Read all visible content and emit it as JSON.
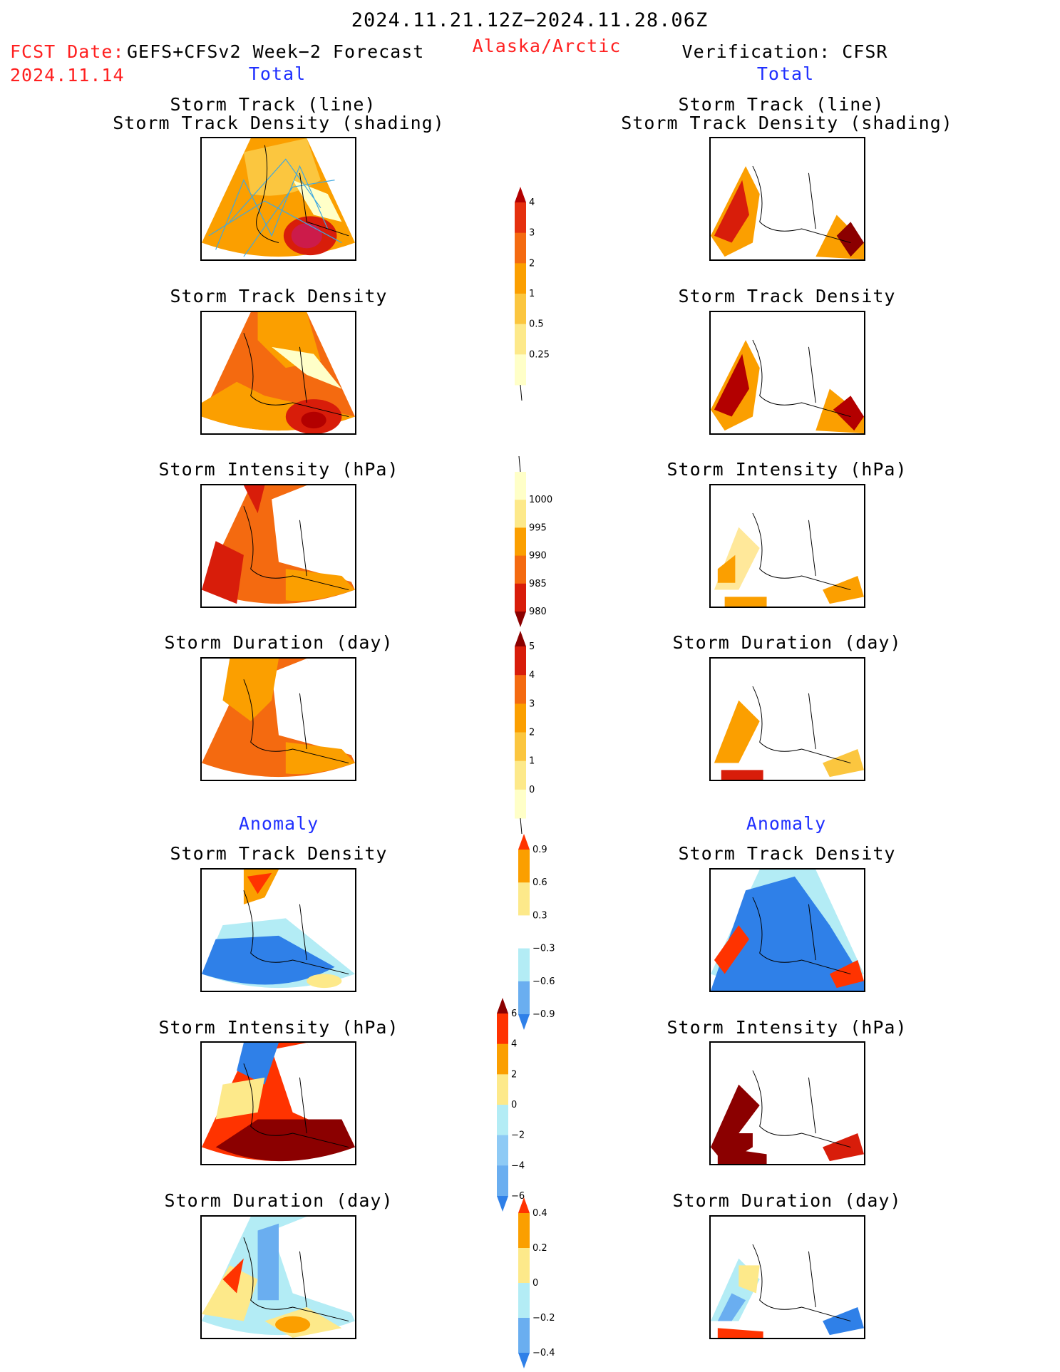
{
  "header": {
    "period": "2024.11.21.12Z−2024.11.28.06Z",
    "fcst_date_label": "FCST Date:",
    "fcst_model": "GEFS+CFSv2 Week−2 Forecast",
    "fcst_date": "2024.11.14",
    "region": "Alaska/Arctic",
    "verification": "Verification: CFSR"
  },
  "columns": {
    "left_total": "Total",
    "right_total": "Total",
    "left_anomaly": "Anomaly",
    "right_anomaly": "Anomaly"
  },
  "panels": {
    "track_title_1": "Storm Track (line)",
    "track_title_2": "Storm Track Density (shading)",
    "density": "Storm Track Density",
    "intensity": "Storm Intensity (hPa)",
    "duration": "Storm Duration (day)"
  },
  "colorbars": {
    "density_total": {
      "labels": [
        "4",
        "3",
        "2",
        "1",
        "0.5",
        "0.25"
      ],
      "colors": [
        "#b30000",
        "#e5300e",
        "#f46a10",
        "#fb9f00",
        "#fbc63f",
        "#fde98a",
        "#ffffc8"
      ]
    },
    "intensity_total": {
      "labels": [
        "1000",
        "995",
        "990",
        "985",
        "980"
      ],
      "colors": [
        "#ffffc8",
        "#fde98a",
        "#fb9f00",
        "#f46a10",
        "#d81d0a",
        "#8b0000"
      ]
    },
    "duration_total": {
      "labels": [
        "5",
        "4",
        "3",
        "2",
        "1",
        "0"
      ],
      "colors": [
        "#8b0000",
        "#d81d0a",
        "#f46a10",
        "#fb9f00",
        "#fbc63f",
        "#fde98a",
        "#ffffc8"
      ]
    },
    "density_anom": {
      "labels": [
        "0.9",
        "0.6",
        "0.3",
        "−0.3",
        "−0.6",
        "−0.9"
      ],
      "colors": [
        "#ff3300",
        "#fb9f00",
        "#fde98a",
        "#ffffff",
        "#b3ecf5",
        "#6aaef0",
        "#2f80e8"
      ]
    },
    "intensity_anom": {
      "labels": [
        "6",
        "4",
        "2",
        "0",
        "−2",
        "−4",
        "−6"
      ],
      "colors": [
        "#8b0000",
        "#ff3300",
        "#fb9f00",
        "#fde98a",
        "#b3ecf5",
        "#8ecaf5",
        "#6aaef0",
        "#2f80e8"
      ]
    },
    "duration_anom": {
      "labels": [
        "0.4",
        "0.2",
        "0",
        "−0.2",
        "−0.4"
      ],
      "colors": [
        "#ff3300",
        "#fb9f00",
        "#fde98a",
        "#b3ecf5",
        "#6aaef0",
        "#2f80e8"
      ]
    }
  }
}
